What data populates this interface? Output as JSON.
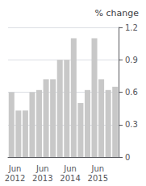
{
  "chart_data": {
    "type": "bar",
    "title": "% change",
    "categories": [
      null,
      "Jun\n2012",
      null,
      null,
      null,
      "Jun\n2013",
      null,
      null,
      null,
      "Jun\n2014",
      null,
      null,
      null,
      "Jun\n2015",
      null,
      null
    ],
    "values": [
      0.6,
      0.43,
      0.43,
      0.6,
      0.62,
      0.72,
      0.72,
      0.9,
      0.9,
      1.1,
      0.5,
      0.62,
      1.1,
      0.72,
      0.62,
      0.65
    ],
    "color": "#c8c8c8",
    "ylim": [
      0,
      1.2
    ],
    "yticks": [
      0,
      0.3,
      0.6,
      0.9,
      1.2
    ],
    "grid": true
  }
}
